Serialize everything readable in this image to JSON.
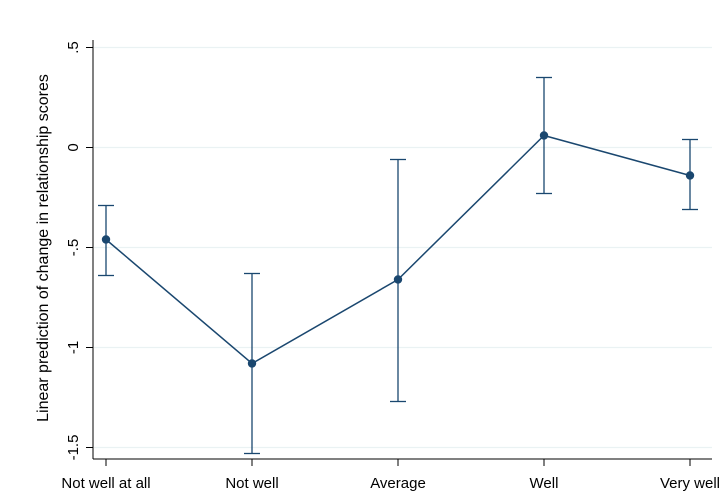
{
  "chart_data": {
    "type": "line",
    "title": "",
    "xlabel": "",
    "ylabel": "Linear prediction of change in relationship scores",
    "categories": [
      "Not well at all",
      "Not well",
      "Average",
      "Well",
      "Very well"
    ],
    "series": [
      {
        "estimates": [
          -0.46,
          -1.08,
          -0.66,
          0.06,
          -0.14
        ],
        "ci_lower": [
          -0.64,
          -1.53,
          -1.27,
          -0.23,
          -0.31
        ],
        "ci_upper": [
          -0.29,
          -0.63,
          -0.06,
          0.35,
          0.04
        ]
      }
    ],
    "y_ticks": [
      0.5,
      0,
      -0.5,
      -1,
      -1.5
    ],
    "y_tick_labels": [
      ".5",
      "0",
      "-.5",
      "-1",
      "-1.5"
    ],
    "ylim": [
      -1.55,
      0.5
    ],
    "grid": true,
    "colors": {
      "series": "#1a476f",
      "grid": "#eaf2f3",
      "axis": "#000000"
    }
  }
}
